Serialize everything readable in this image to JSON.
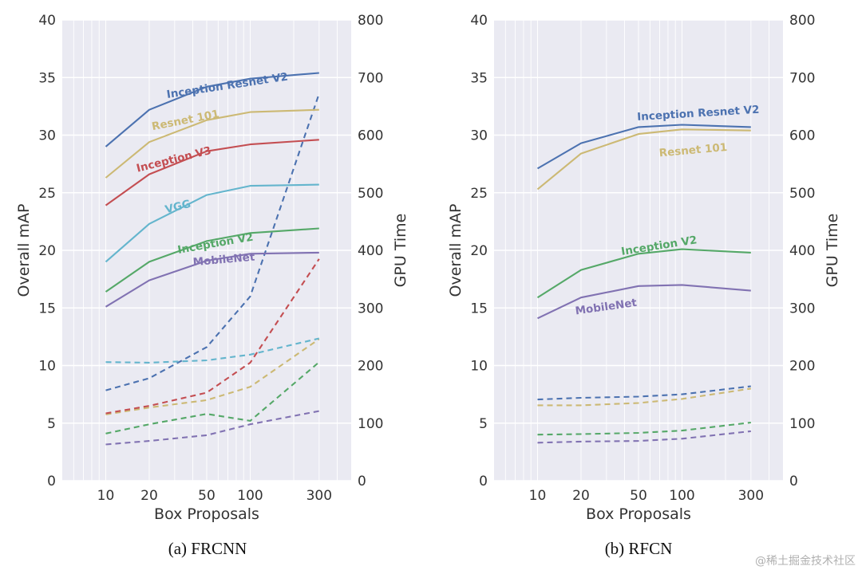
{
  "chart_data": [
    {
      "type": "line",
      "caption": "(a) FRCNN",
      "xlabel": "Box Proposals",
      "ylabel": "Overall mAP",
      "y2label": "GPU Time",
      "x": [
        10,
        20,
        50,
        100,
        300
      ],
      "xscale": "log",
      "xlim": [
        5,
        500
      ],
      "ylim": [
        0,
        40
      ],
      "y2lim": [
        0,
        800
      ],
      "yticks": [
        0,
        5,
        10,
        15,
        20,
        25,
        30,
        35,
        40
      ],
      "y2ticks": [
        0,
        100,
        200,
        300,
        400,
        500,
        600,
        700,
        800
      ],
      "xticks": [
        10,
        20,
        50,
        100,
        300
      ],
      "grid": true,
      "series": [
        {
          "name": "Inception Resnet V2",
          "color": "#4c72b0",
          "map": [
            29.0,
            32.2,
            34.2,
            34.9,
            35.4
          ],
          "gpu_time": [
            157,
            178,
            232,
            320,
            672
          ]
        },
        {
          "name": "Resnet 101",
          "color": "#ccb974",
          "map": [
            26.3,
            29.4,
            31.3,
            32.0,
            32.2
          ],
          "gpu_time": [
            115,
            127,
            140,
            163,
            246
          ]
        },
        {
          "name": "Inception V3",
          "color": "#c44e52",
          "map": [
            23.9,
            26.6,
            28.6,
            29.2,
            29.6
          ],
          "gpu_time": [
            117,
            130,
            153,
            205,
            385
          ]
        },
        {
          "name": "VGG",
          "color": "#64b5cd",
          "map": [
            19.0,
            22.3,
            24.8,
            25.6,
            25.7
          ],
          "gpu_time": [
            206,
            205,
            209,
            219,
            247
          ]
        },
        {
          "name": "Inception V2",
          "color": "#55a868",
          "map": [
            16.4,
            19.0,
            20.8,
            21.5,
            21.9
          ],
          "gpu_time": [
            82,
            98,
            116,
            104,
            206
          ]
        },
        {
          "name": "MobileNet",
          "color": "#8172b2",
          "map": [
            15.1,
            17.4,
            19.1,
            19.7,
            19.8
          ],
          "gpu_time": [
            63,
            69,
            79,
            98,
            121
          ]
        }
      ]
    },
    {
      "type": "line",
      "caption": "(b) RFCN",
      "xlabel": "Box Proposals",
      "ylabel": "Overall mAP",
      "y2label": "GPU Time",
      "x": [
        10,
        20,
        50,
        100,
        300
      ],
      "xscale": "log",
      "xlim": [
        5,
        500
      ],
      "ylim": [
        0,
        40
      ],
      "y2lim": [
        0,
        800
      ],
      "yticks": [
        0,
        5,
        10,
        15,
        20,
        25,
        30,
        35,
        40
      ],
      "y2ticks": [
        0,
        100,
        200,
        300,
        400,
        500,
        600,
        700,
        800
      ],
      "xticks": [
        10,
        20,
        50,
        100,
        300
      ],
      "grid": true,
      "series": [
        {
          "name": "Inception Resnet V2",
          "color": "#4c72b0",
          "map": [
            27.1,
            29.3,
            30.7,
            30.9,
            30.7
          ],
          "gpu_time": [
            141,
            144,
            146,
            150,
            164
          ]
        },
        {
          "name": "Resnet 101",
          "color": "#ccb974",
          "map": [
            25.3,
            28.4,
            30.1,
            30.5,
            30.4
          ],
          "gpu_time": [
            131,
            131,
            135,
            142,
            160
          ]
        },
        {
          "name": "Inception V2",
          "color": "#55a868",
          "map": [
            15.9,
            18.3,
            19.7,
            20.1,
            19.8
          ],
          "gpu_time": [
            80,
            81,
            83,
            87,
            101
          ]
        },
        {
          "name": "MobileNet",
          "color": "#8172b2",
          "map": [
            14.1,
            15.9,
            16.9,
            17.0,
            16.5
          ],
          "gpu_time": [
            66,
            68,
            69,
            73,
            86
          ]
        }
      ]
    }
  ],
  "watermark": "@稀土掘金技术社区"
}
